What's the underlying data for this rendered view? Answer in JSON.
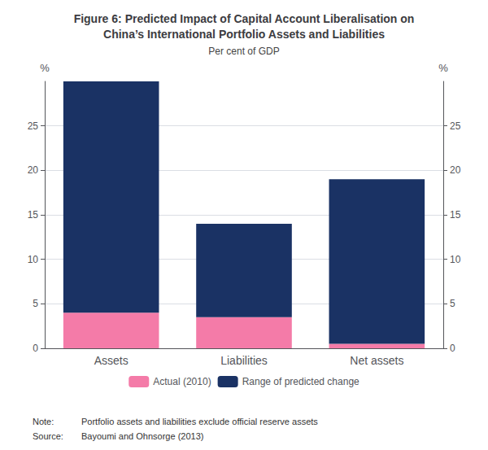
{
  "chart_data": {
    "type": "bar",
    "title": "Figure 6: Predicted Impact of Capital Account Liberalisation on\nChina’s International Portfolio Assets and Liabilities",
    "subtitle": "Per cent of GDP",
    "categories": [
      "Assets",
      "Liabilities",
      "Net assets"
    ],
    "series": [
      {
        "name": "Actual (2010)",
        "color": "#F47BA8",
        "values": [
          4.0,
          3.5,
          0.5
        ]
      },
      {
        "name": "Range of predicted change",
        "color": "#1A3264",
        "values": [
          26.0,
          10.5,
          18.5
        ]
      }
    ],
    "stacked": true,
    "ylim": [
      0,
      30
    ],
    "yticks": [
      0,
      5,
      10,
      15,
      20,
      25
    ],
    "y2lim": [
      0,
      30
    ],
    "y2ticks": [
      0,
      5,
      10,
      15,
      20,
      25
    ],
    "ylabel": "%",
    "y2label": "%",
    "grid": true,
    "legend": "bottom",
    "annotations": [
      {
        "label": "Note:",
        "text": "Portfolio assets and liabilities exclude official reserve assets"
      },
      {
        "label": "Source:",
        "text": "Bayoumi and Ohnsorge (2013)"
      }
    ]
  }
}
